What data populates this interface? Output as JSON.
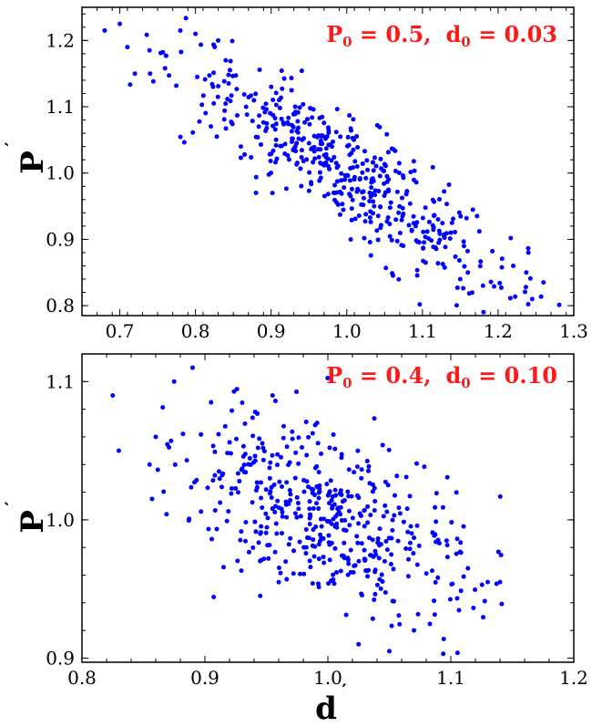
{
  "colors": {
    "points": "#0000ff",
    "annotation": "#ff1a1a",
    "axes": "#000000"
  },
  "chart_data": [
    {
      "type": "scatter",
      "title": "",
      "ylabel": "P",
      "ylabel_prime": "′",
      "xlabel": "",
      "xlim": [
        0.65,
        1.3
      ],
      "ylim": [
        0.785,
        1.25
      ],
      "xticks": [
        0.7,
        0.8,
        0.9,
        1.0,
        1.1,
        1.2,
        1.3
      ],
      "xtick_labels": [
        "0.7",
        "0.8",
        "0.9",
        "1.0",
        "1.1",
        "1.2",
        "1.3"
      ],
      "yticks": [
        0.8,
        0.9,
        1.0,
        1.1,
        1.2
      ],
      "ytick_labels": [
        "0.8",
        "0.9",
        "1.0",
        "1.1",
        "1.2"
      ],
      "annotation": {
        "p_sym": "P",
        "p_sub": "0",
        "p_eq": " = 0.5,",
        "d_sym": "d",
        "d_sub": "0",
        "d_eq": " = 0.03"
      },
      "n_points": 480,
      "fit": {
        "center_x": 1.0,
        "center_y": 1.0,
        "slope": -0.75,
        "x_sd": 0.11,
        "y_noise": 0.04
      },
      "highlights": [
        [
          0.68,
          1.215
        ],
        [
          0.7,
          1.225
        ],
        [
          0.71,
          1.19
        ],
        [
          0.72,
          1.15
        ],
        [
          0.74,
          1.15
        ],
        [
          0.78,
          1.215
        ],
        [
          0.8,
          1.21
        ],
        [
          0.83,
          1.2
        ],
        [
          0.84,
          1.17
        ],
        [
          0.9,
          1.13
        ],
        [
          0.86,
          1.04
        ],
        [
          0.88,
          0.97
        ],
        [
          1.15,
          0.84
        ],
        [
          1.16,
          0.85
        ],
        [
          1.18,
          0.83
        ],
        [
          1.22,
          0.86
        ],
        [
          1.24,
          0.88
        ],
        [
          1.245,
          0.81
        ],
        [
          1.26,
          0.835
        ]
      ]
    },
    {
      "type": "scatter",
      "title": "",
      "ylabel": "P",
      "ylabel_prime": "′",
      "xlabel": "d",
      "xlabel_prime": "′",
      "xlim": [
        0.8,
        1.2
      ],
      "ylim": [
        0.897,
        1.12
      ],
      "xticks": [
        0.8,
        0.9,
        1.0,
        1.1,
        1.2
      ],
      "xtick_labels": [
        "0.8",
        "0.9",
        "1.0",
        "1.1",
        "1.2"
      ],
      "yticks": [
        0.9,
        1.0,
        1.1
      ],
      "ytick_labels": [
        "0.9",
        "1.0",
        "1.1"
      ],
      "annotation": {
        "p_sym": "P",
        "p_sub": "0",
        "p_eq": " = 0.4,",
        "d_sym": "d",
        "d_sub": "0",
        "d_eq": " = 0.10"
      },
      "n_points": 480,
      "fit": {
        "center_x": 1.0,
        "center_y": 1.0,
        "slope": -0.32,
        "x_sd": 0.058,
        "y_noise": 0.032
      },
      "highlights": [
        [
          0.825,
          1.09
        ],
        [
          0.83,
          1.05
        ],
        [
          0.855,
          1.04
        ],
        [
          0.86,
          1.06
        ],
        [
          0.875,
          1.1
        ],
        [
          0.89,
          1.11
        ],
        [
          0.905,
          1.085
        ],
        [
          0.955,
          1.09
        ],
        [
          1.13,
          0.955
        ],
        [
          1.14,
          0.955
        ],
        [
          1.05,
          0.905
        ],
        [
          1.025,
          0.91
        ],
        [
          1.07,
          0.92
        ],
        [
          0.945,
          0.945
        ]
      ]
    }
  ]
}
